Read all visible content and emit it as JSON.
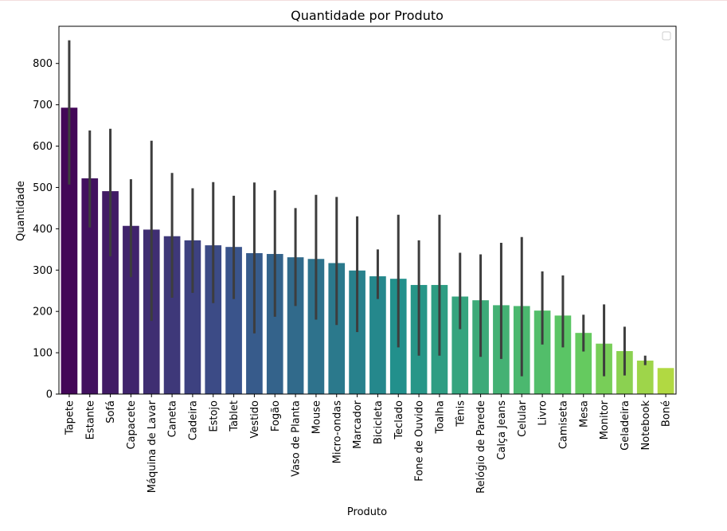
{
  "chart_data": {
    "type": "bar",
    "title": "Quantidade por Produto",
    "xlabel": "Produto",
    "ylabel": "Quantidade",
    "ylim": [
      0,
      890
    ],
    "yticks": [
      0,
      100,
      200,
      300,
      400,
      500,
      600,
      700,
      800
    ],
    "grid": false,
    "legend": "top-right, empty",
    "palette": "viridis",
    "categories": [
      "Tapete",
      "Estante",
      "Sofá",
      "Capacete",
      "Máquina de Lavar",
      "Caneta",
      "Cadeira",
      "Estojo",
      "Tablet",
      "Vestido",
      "Fogão",
      "Vaso de Planta",
      "Mouse",
      "Micro-ondas",
      "Marcador",
      "Bicicleta",
      "Teclado",
      "Fone de Ouvido",
      "Toalha",
      "Tênis",
      "Relógio de Parede",
      "Calça Jeans",
      "Celular",
      "Livro",
      "Camiseta",
      "Mesa",
      "Monitor",
      "Geladeira",
      "Notebook",
      "Boné"
    ],
    "values": [
      693,
      522,
      491,
      407,
      398,
      382,
      372,
      360,
      356,
      341,
      339,
      331,
      327,
      317,
      299,
      285,
      279,
      264,
      264,
      236,
      227,
      215,
      213,
      202,
      190,
      148,
      122,
      104,
      81,
      63
    ],
    "error_low": [
      507,
      403,
      333,
      283,
      177,
      233,
      245,
      220,
      230,
      147,
      187,
      213,
      180,
      167,
      150,
      230,
      113,
      93,
      93,
      157,
      90,
      85,
      43,
      120,
      113,
      103,
      43,
      45,
      70,
      63
    ],
    "error_high": [
      856,
      638,
      642,
      520,
      613,
      535,
      498,
      513,
      480,
      512,
      493,
      450,
      482,
      477,
      430,
      350,
      434,
      372,
      434,
      342,
      338,
      366,
      380,
      297,
      287,
      192,
      217,
      163,
      93,
      63
    ]
  }
}
